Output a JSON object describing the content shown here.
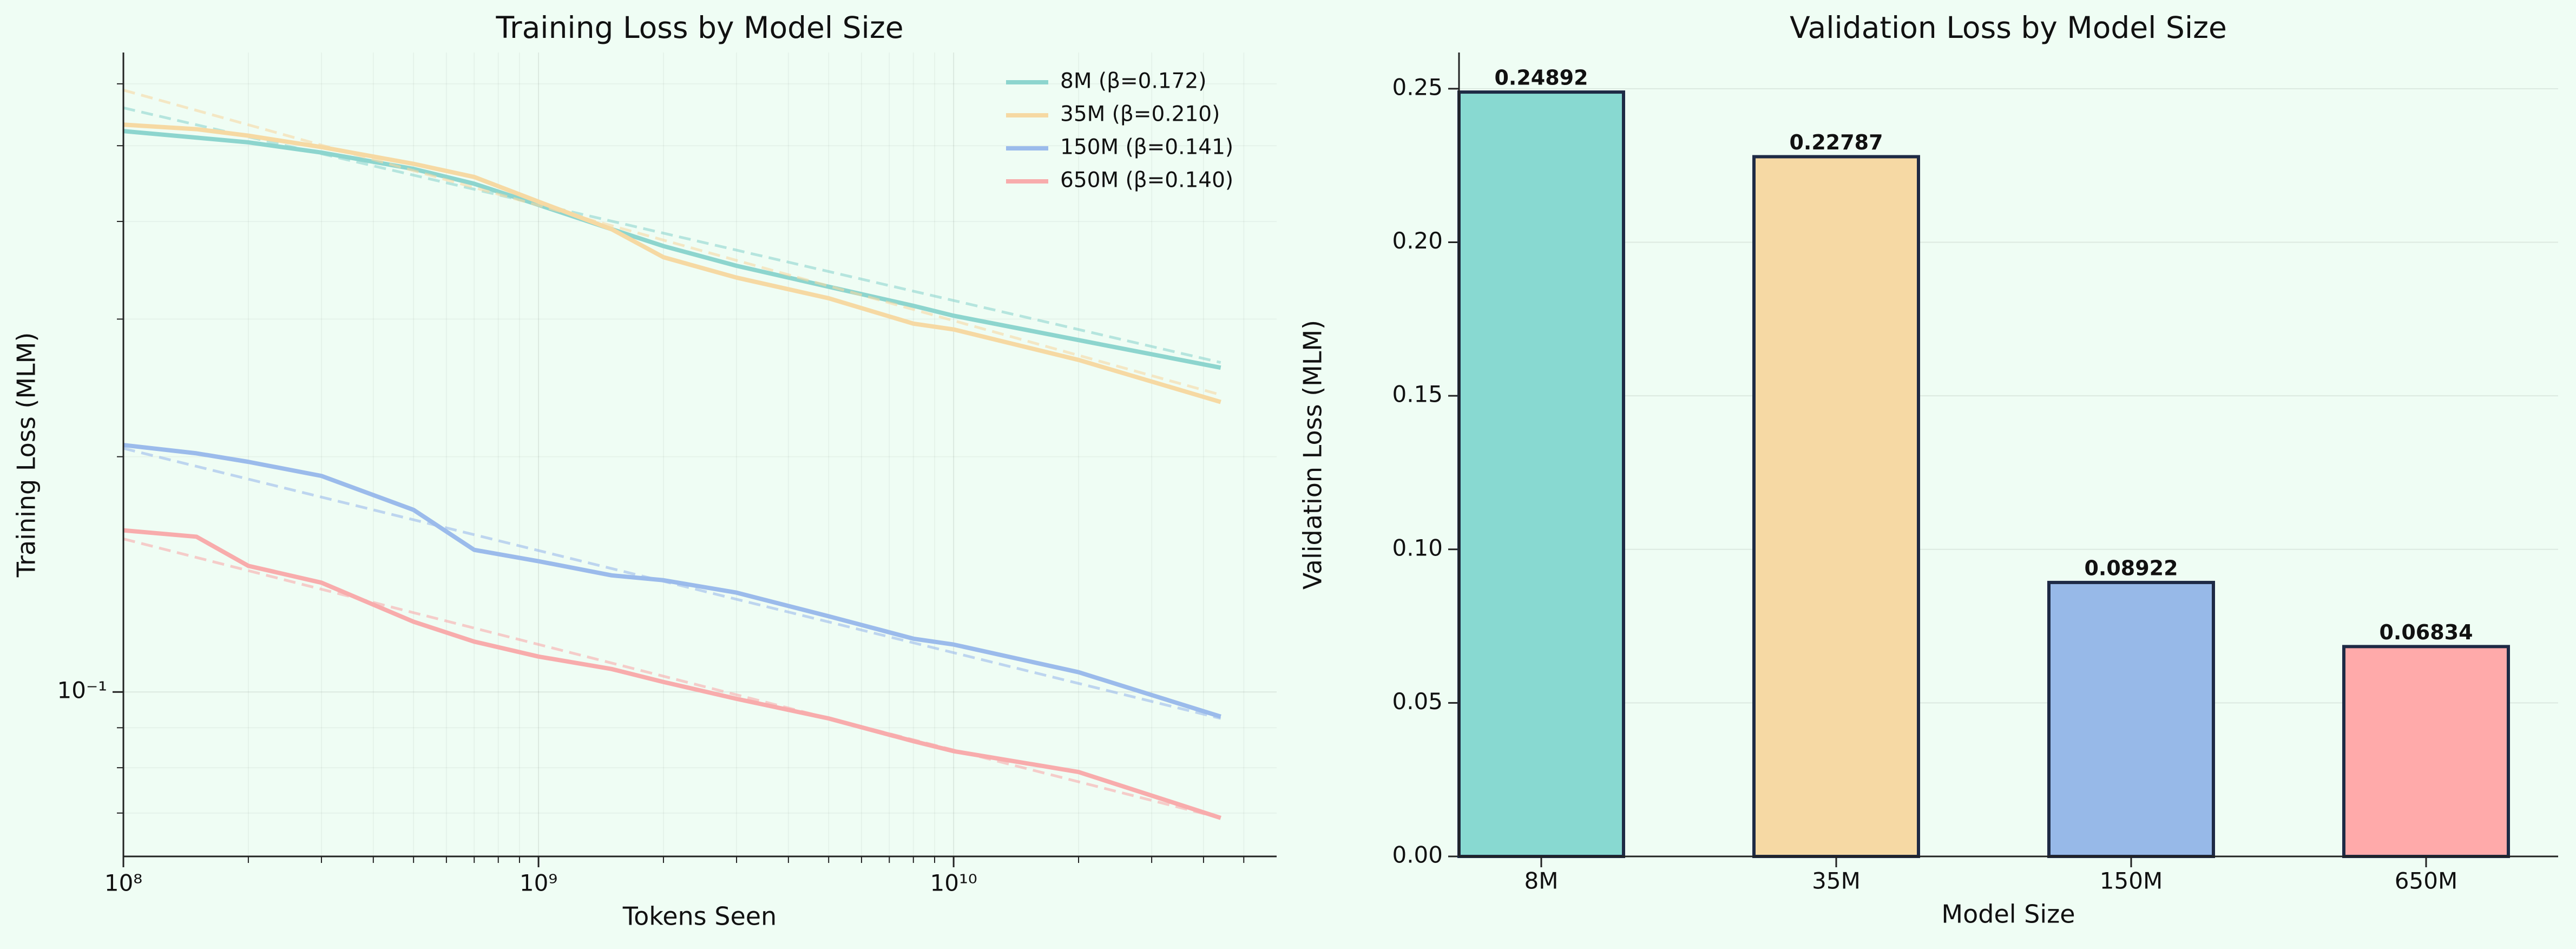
{
  "chart_data": [
    {
      "type": "line",
      "title": "Training Loss by Model Size",
      "x_label": "Tokens Seen",
      "y_label": "Training Loss (MLM)",
      "x_scale": "log",
      "y_scale": "log",
      "grid": true,
      "legend": "upper right",
      "x": [
        100000000.0,
        150000000.0,
        200000000.0,
        300000000.0,
        500000000.0,
        700000000.0,
        1000000000.0,
        1500000000.0,
        2000000000.0,
        3000000000.0,
        5000000000.0,
        8000000000.0,
        10000000000.0,
        20000000000.0,
        44000000000.0
      ],
      "fit_x": [
        100000000.0,
        44000000000.0
      ],
      "series": [
        {
          "name": "8M (β=0.172)",
          "color": "#8dd5ce",
          "values": [
            0.522,
            0.512,
            0.505,
            0.49,
            0.467,
            0.447,
            0.42,
            0.391,
            0.372,
            0.351,
            0.33,
            0.312,
            0.303,
            0.282,
            0.26
          ],
          "fit": [
            0.559,
            0.264
          ]
        },
        {
          "name": "35M (β=0.210)",
          "color": "#f6d9a3",
          "values": [
            0.532,
            0.525,
            0.515,
            0.498,
            0.474,
            0.456,
            0.424,
            0.391,
            0.36,
            0.339,
            0.319,
            0.296,
            0.291,
            0.266,
            0.235
          ],
          "fit": [
            0.589,
            0.24
          ]
        },
        {
          "name": "150M (β=0.141)",
          "color": "#9bbbeb",
          "values": [
            0.207,
            0.202,
            0.197,
            0.189,
            0.171,
            0.152,
            0.147,
            0.141,
            0.139,
            0.134,
            0.125,
            0.117,
            0.115,
            0.106,
            0.093
          ],
          "fit": [
            0.205,
            0.0925
          ]
        },
        {
          "name": "650M (β=0.140)",
          "color": "#f8acac",
          "values": [
            0.161,
            0.158,
            0.145,
            0.138,
            0.123,
            0.116,
            0.111,
            0.107,
            0.103,
            0.098,
            0.0925,
            0.0865,
            0.084,
            0.079,
            0.069
          ],
          "fit": [
            0.157,
            0.069
          ]
        }
      ],
      "xlim": [
        100000000.0,
        60000000000.0
      ],
      "ylim": [
        0.0616,
        0.658
      ],
      "xticks": [
        {
          "value": 100000000.0,
          "label": "10⁸"
        },
        {
          "value": 1000000000.0,
          "label": "10⁹"
        },
        {
          "value": 10000000000.0,
          "label": "10¹⁰"
        }
      ],
      "xticks_minor": [
        200000000.0,
        300000000.0,
        400000000.0,
        500000000.0,
        600000000.0,
        700000000.0,
        800000000.0,
        900000000.0,
        2000000000.0,
        3000000000.0,
        4000000000.0,
        5000000000.0,
        6000000000.0,
        7000000000.0,
        8000000000.0,
        9000000000.0,
        20000000000.0,
        30000000000.0,
        40000000000.0,
        50000000000.0
      ],
      "yticks": [
        {
          "value": 0.1,
          "label": "10⁻¹"
        }
      ],
      "yticks_minor": [
        0.07,
        0.08,
        0.09,
        0.2,
        0.3,
        0.4,
        0.5,
        0.6
      ]
    },
    {
      "type": "bar",
      "title": "Validation Loss by Model Size",
      "x_label": "Model Size",
      "y_label": "Validation Loss (MLM)",
      "grid": true,
      "categories": [
        "8M",
        "35M",
        "150M",
        "650M"
      ],
      "values": [
        0.24892,
        0.22787,
        0.08922,
        0.06834
      ],
      "colors": [
        "#88d9d1",
        "#f6d9a4",
        "#97b9e8",
        "#ffaaaa"
      ],
      "ylim": [
        0,
        0.2618
      ],
      "yticks": [
        {
          "value": 0,
          "label": "0.00"
        },
        {
          "value": 0.05,
          "label": "0.05"
        },
        {
          "value": 0.1,
          "label": "0.10"
        },
        {
          "value": 0.15,
          "label": "0.15"
        },
        {
          "value": 0.2,
          "label": "0.20"
        },
        {
          "value": 0.25,
          "label": "0.25"
        }
      ]
    }
  ]
}
